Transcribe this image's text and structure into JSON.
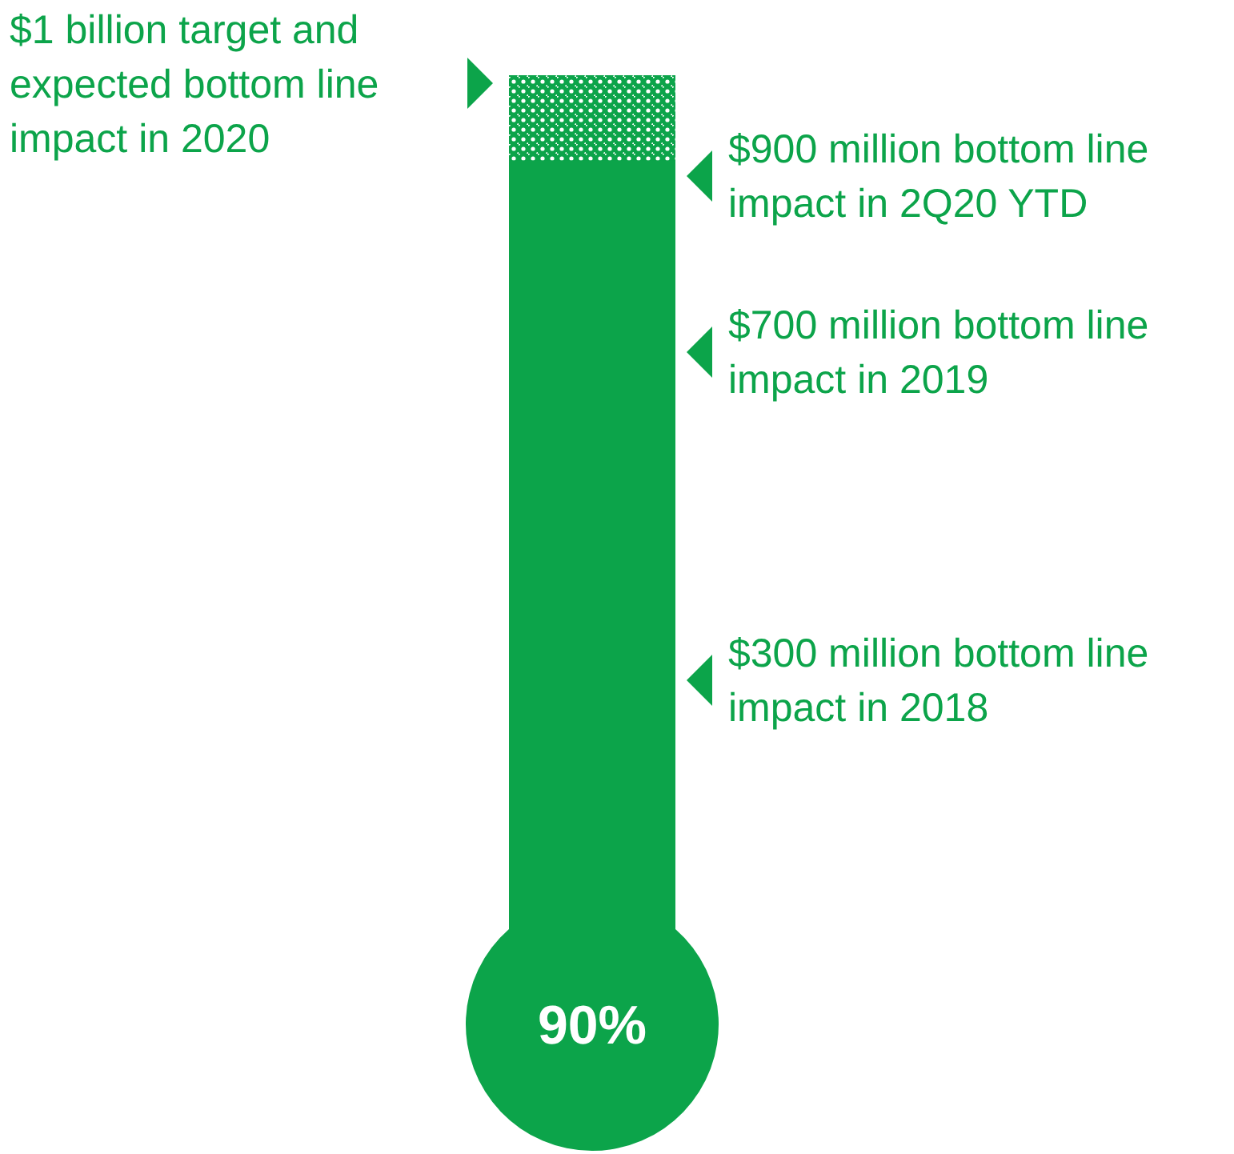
{
  "chart_data": {
    "type": "other",
    "categories": [
      null
    ],
    "values": [
      90
    ],
    "value_labels": [
      "90%"
    ],
    "color": "#0ca44a",
    "annotations": [
      "$1 billion target and expected bottom line impact in 2020",
      "$900 million bottom line impact in 2Q20 YTD",
      "$700 million bottom line impact in 2019",
      "$300 million bottom line impact in 2018"
    ]
  }
}
